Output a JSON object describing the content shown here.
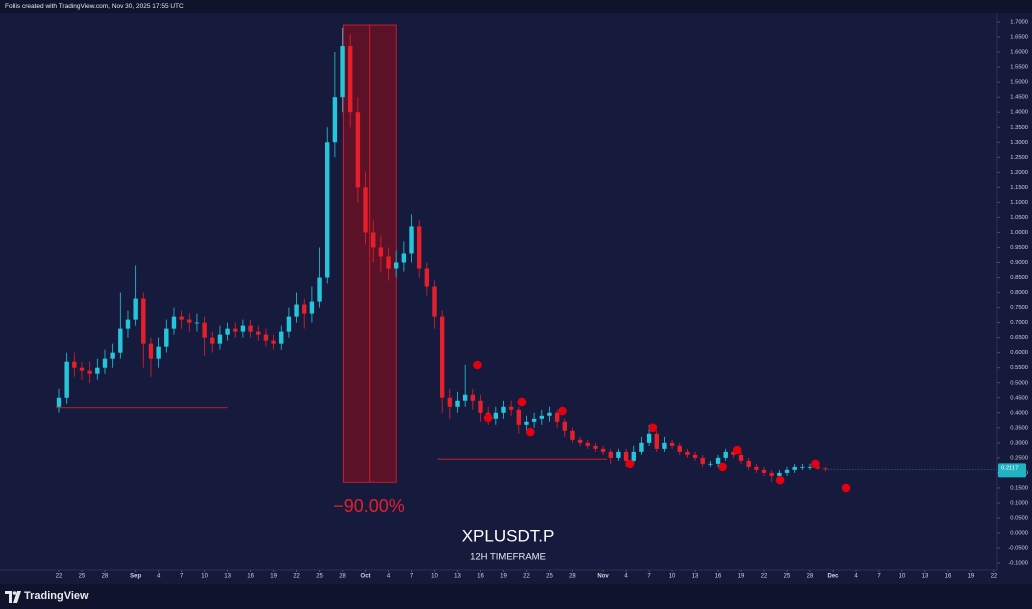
{
  "header": {
    "text": "Follis created with TradingView.com, Nov 30, 2025 17:55 UTC"
  },
  "footer": {
    "brand": "TradingView"
  },
  "chart_data": {
    "type": "candlestick",
    "title": "XPLUSDT.P",
    "subtitle": "12H TIMEFRAME",
    "up_color": "#26c6da",
    "down_color": "#e5202a",
    "grid": false,
    "x": [
      0,
      1,
      2,
      3,
      4,
      5,
      6,
      7,
      8,
      9,
      10,
      11,
      12,
      13,
      14,
      15,
      16,
      17,
      18,
      19,
      20,
      21,
      22,
      23,
      24,
      25,
      26,
      27,
      28,
      29,
      30,
      31,
      32,
      33,
      34,
      35,
      36,
      37,
      38,
      39,
      40,
      41,
      42,
      43,
      44,
      45,
      46,
      47,
      48,
      49,
      50,
      51,
      52,
      53,
      54,
      55,
      56,
      57,
      58,
      59,
      60,
      61,
      62,
      63,
      64,
      65,
      66,
      67,
      68,
      69,
      70,
      71,
      72,
      73,
      74,
      75,
      76,
      77,
      78,
      79,
      80,
      81,
      82,
      83,
      84,
      85,
      86,
      87,
      88,
      89,
      90,
      91,
      92,
      93,
      94,
      95,
      96,
      97,
      98,
      99,
      100
    ],
    "open": [
      0.42,
      0.45,
      0.57,
      0.55,
      0.54,
      0.53,
      0.55,
      0.58,
      0.6,
      0.68,
      0.71,
      0.78,
      0.63,
      0.58,
      0.62,
      0.68,
      0.72,
      0.71,
      0.7,
      0.7,
      0.65,
      0.63,
      0.66,
      0.68,
      0.67,
      0.69,
      0.67,
      0.66,
      0.64,
      0.63,
      0.67,
      0.72,
      0.76,
      0.73,
      0.77,
      0.85,
      1.3,
      1.45,
      1.62,
      1.4,
      1.15,
      1.0,
      0.95,
      0.92,
      0.88,
      0.9,
      0.93,
      1.02,
      0.88,
      0.82,
      0.72,
      0.45,
      0.42,
      0.44,
      0.46,
      0.44,
      0.4,
      0.38,
      0.4,
      0.42,
      0.41,
      0.36,
      0.37,
      0.38,
      0.39,
      0.4,
      0.37,
      0.34,
      0.31,
      0.3,
      0.29,
      0.28,
      0.27,
      0.25,
      0.27,
      0.24,
      0.27,
      0.3,
      0.33,
      0.28,
      0.3,
      0.29,
      0.27,
      0.26,
      0.25,
      0.23,
      0.23,
      0.25,
      0.27,
      0.26,
      0.24,
      0.22,
      0.21,
      0.2,
      0.19,
      0.2,
      0.21,
      0.22,
      0.22,
      0.22,
      0.215
    ],
    "high": [
      0.48,
      0.6,
      0.6,
      0.57,
      0.57,
      0.58,
      0.61,
      0.63,
      0.8,
      0.74,
      0.89,
      0.8,
      0.65,
      0.65,
      0.71,
      0.75,
      0.74,
      0.73,
      0.73,
      0.72,
      0.67,
      0.69,
      0.7,
      0.7,
      0.71,
      0.71,
      0.69,
      0.68,
      0.66,
      0.69,
      0.75,
      0.8,
      0.78,
      0.82,
      0.95,
      1.35,
      1.6,
      1.68,
      1.66,
      1.45,
      1.2,
      1.04,
      0.99,
      0.95,
      0.94,
      0.97,
      1.06,
      1.04,
      0.9,
      0.84,
      0.74,
      0.48,
      0.47,
      0.56,
      0.48,
      0.46,
      0.42,
      0.42,
      0.44,
      0.44,
      0.42,
      0.39,
      0.4,
      0.41,
      0.42,
      0.41,
      0.38,
      0.35,
      0.32,
      0.31,
      0.3,
      0.29,
      0.28,
      0.28,
      0.28,
      0.29,
      0.32,
      0.36,
      0.34,
      0.32,
      0.31,
      0.3,
      0.28,
      0.27,
      0.26,
      0.24,
      0.26,
      0.28,
      0.28,
      0.27,
      0.25,
      0.23,
      0.22,
      0.21,
      0.21,
      0.22,
      0.23,
      0.23,
      0.23,
      0.225,
      0.22
    ],
    "low": [
      0.4,
      0.43,
      0.52,
      0.51,
      0.5,
      0.51,
      0.53,
      0.55,
      0.58,
      0.65,
      0.69,
      0.55,
      0.52,
      0.55,
      0.6,
      0.66,
      0.68,
      0.67,
      0.67,
      0.59,
      0.6,
      0.61,
      0.64,
      0.65,
      0.65,
      0.65,
      0.64,
      0.62,
      0.61,
      0.61,
      0.65,
      0.7,
      0.68,
      0.7,
      0.75,
      0.83,
      1.25,
      1.4,
      1.35,
      1.1,
      0.96,
      0.9,
      0.87,
      0.84,
      0.85,
      0.87,
      0.9,
      0.85,
      0.79,
      0.68,
      0.4,
      0.38,
      0.4,
      0.42,
      0.41,
      0.37,
      0.36,
      0.36,
      0.38,
      0.39,
      0.33,
      0.34,
      0.35,
      0.36,
      0.37,
      0.35,
      0.32,
      0.3,
      0.29,
      0.28,
      0.27,
      0.26,
      0.23,
      0.24,
      0.22,
      0.23,
      0.26,
      0.29,
      0.27,
      0.27,
      0.28,
      0.26,
      0.25,
      0.24,
      0.22,
      0.22,
      0.22,
      0.24,
      0.25,
      0.23,
      0.21,
      0.2,
      0.19,
      0.17,
      0.18,
      0.19,
      0.2,
      0.21,
      0.21,
      0.21,
      0.205
    ],
    "close": [
      0.45,
      0.57,
      0.55,
      0.54,
      0.53,
      0.55,
      0.58,
      0.6,
      0.68,
      0.71,
      0.78,
      0.63,
      0.58,
      0.62,
      0.68,
      0.72,
      0.71,
      0.7,
      0.7,
      0.65,
      0.63,
      0.66,
      0.68,
      0.67,
      0.69,
      0.67,
      0.66,
      0.64,
      0.63,
      0.67,
      0.72,
      0.76,
      0.73,
      0.77,
      0.85,
      1.3,
      1.45,
      1.62,
      1.4,
      1.15,
      1.0,
      0.95,
      0.92,
      0.88,
      0.9,
      0.93,
      1.02,
      0.88,
      0.82,
      0.72,
      0.45,
      0.42,
      0.44,
      0.46,
      0.44,
      0.4,
      0.38,
      0.4,
      0.42,
      0.41,
      0.36,
      0.37,
      0.38,
      0.39,
      0.4,
      0.37,
      0.34,
      0.31,
      0.3,
      0.29,
      0.28,
      0.27,
      0.25,
      0.27,
      0.24,
      0.27,
      0.3,
      0.33,
      0.28,
      0.3,
      0.29,
      0.27,
      0.26,
      0.25,
      0.23,
      0.23,
      0.25,
      0.27,
      0.26,
      0.24,
      0.22,
      0.21,
      0.2,
      0.19,
      0.2,
      0.21,
      0.22,
      0.22,
      0.22,
      0.215,
      0.2117
    ],
    "xlim": [
      -7.7,
      122.4
    ],
    "ylim": [
      -0.123,
      1.73
    ],
    "xticks": [
      {
        "value": 0,
        "label": "22"
      },
      {
        "value": 3,
        "label": "25"
      },
      {
        "value": 6,
        "label": "28"
      },
      {
        "value": 10,
        "label": "Sep"
      },
      {
        "value": 13,
        "label": "4"
      },
      {
        "value": 16,
        "label": "7"
      },
      {
        "value": 19,
        "label": "10"
      },
      {
        "value": 22,
        "label": "13"
      },
      {
        "value": 25,
        "label": "16"
      },
      {
        "value": 28,
        "label": "19"
      },
      {
        "value": 31,
        "label": "22"
      },
      {
        "value": 34,
        "label": "25"
      },
      {
        "value": 37,
        "label": "28"
      },
      {
        "value": 40,
        "label": "Oct"
      },
      {
        "value": 43,
        "label": "4"
      },
      {
        "value": 46,
        "label": "7"
      },
      {
        "value": 49,
        "label": "10"
      },
      {
        "value": 52,
        "label": "13"
      },
      {
        "value": 55,
        "label": "16"
      },
      {
        "value": 58,
        "label": "19"
      },
      {
        "value": 61,
        "label": "22"
      },
      {
        "value": 64,
        "label": "25"
      },
      {
        "value": 67,
        "label": "28"
      },
      {
        "value": 71,
        "label": "Nov"
      },
      {
        "value": 74,
        "label": "4"
      },
      {
        "value": 77,
        "label": "7"
      },
      {
        "value": 80,
        "label": "10"
      },
      {
        "value": 83,
        "label": "13"
      },
      {
        "value": 86,
        "label": "16"
      },
      {
        "value": 89,
        "label": "19"
      },
      {
        "value": 92,
        "label": "22"
      },
      {
        "value": 95,
        "label": "25"
      },
      {
        "value": 98,
        "label": "28"
      },
      {
        "value": 101,
        "label": "Dec"
      },
      {
        "value": 104,
        "label": "4"
      },
      {
        "value": 107,
        "label": "7"
      },
      {
        "value": 110,
        "label": "10"
      },
      {
        "value": 113,
        "label": "13"
      },
      {
        "value": 116,
        "label": "16"
      },
      {
        "value": 119,
        "label": "19"
      },
      {
        "value": 122,
        "label": "22"
      }
    ],
    "yticks": [
      {
        "value": 1.7,
        "label": "1.7000"
      },
      {
        "value": 1.65,
        "label": "1.6500"
      },
      {
        "value": 1.6,
        "label": "1.6000"
      },
      {
        "value": 1.55,
        "label": "1.5500"
      },
      {
        "value": 1.5,
        "label": "1.5000"
      },
      {
        "value": 1.45,
        "label": "1.4500"
      },
      {
        "value": 1.4,
        "label": "1.4000"
      },
      {
        "value": 1.35,
        "label": "1.3500"
      },
      {
        "value": 1.3,
        "label": "1.3000"
      },
      {
        "value": 1.25,
        "label": "1.2500"
      },
      {
        "value": 1.2,
        "label": "1.2000"
      },
      {
        "value": 1.15,
        "label": "1.1500"
      },
      {
        "value": 1.1,
        "label": "1.1000"
      },
      {
        "value": 1.05,
        "label": "1.0500"
      },
      {
        "value": 1.0,
        "label": "1.0000"
      },
      {
        "value": 0.95,
        "label": "0.9500"
      },
      {
        "value": 0.9,
        "label": "0.9000"
      },
      {
        "value": 0.85,
        "label": "0.8500"
      },
      {
        "value": 0.8,
        "label": "0.8000"
      },
      {
        "value": 0.75,
        "label": "0.7500"
      },
      {
        "value": 0.7,
        "label": "0.7000"
      },
      {
        "value": 0.65,
        "label": "0.6500"
      },
      {
        "value": 0.6,
        "label": "0.6000"
      },
      {
        "value": 0.55,
        "label": "0.5500"
      },
      {
        "value": 0.5,
        "label": "0.5000"
      },
      {
        "value": 0.45,
        "label": "0.4500"
      },
      {
        "value": 0.4,
        "label": "0.4000"
      },
      {
        "value": 0.35,
        "label": "0.3500"
      },
      {
        "value": 0.3,
        "label": "0.3000"
      },
      {
        "value": 0.25,
        "label": "0.2500"
      },
      {
        "value": 0.2,
        "label": "0.2000"
      },
      {
        "value": 0.15,
        "label": "0.1500"
      },
      {
        "value": 0.1,
        "label": "0.1000"
      },
      {
        "value": 0.05,
        "label": "0.0500"
      },
      {
        "value": 0,
        "label": "0.0000"
      },
      {
        "value": -0.05,
        "label": "-0.0500"
      },
      {
        "value": -0.1,
        "label": "-0.1000"
      }
    ],
    "range_box": {
      "x": [
        37.1,
        44
      ],
      "y": [
        1.69,
        0.169
      ],
      "color": "#8b0d1c"
    },
    "range_change": {
      "value": -90,
      "label": "−90.00%"
    },
    "trend_lines": [
      {
        "x": [
          -0.3,
          22
        ],
        "y": [
          0.42,
          0.42
        ],
        "color": "#e5202a"
      },
      {
        "x": [
          49.5,
          71.5
        ],
        "y": [
          0.249,
          0.249
        ],
        "color": "#e5202a"
      }
    ],
    "markers": {
      "x": [
        54.6,
        56,
        60.4,
        61.5,
        65.7,
        74.5,
        77.5,
        86.6,
        88.5,
        94.1,
        98.7,
        102.7
      ],
      "y": [
        0.559,
        0.383,
        0.436,
        0.336,
        0.406,
        0.23,
        0.35,
        0.22,
        0.276,
        0.176,
        0.23,
        0.15
      ],
      "color": "#e3000f"
    }
  }
}
